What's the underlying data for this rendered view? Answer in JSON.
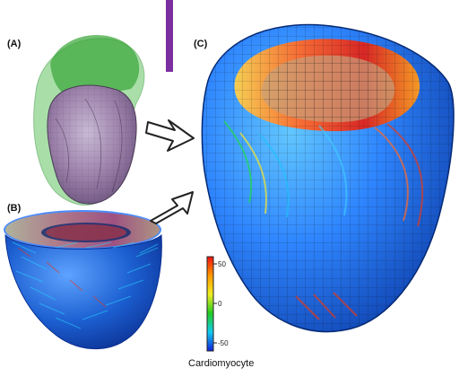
{
  "panels": {
    "a": {
      "label": "(A)"
    },
    "b": {
      "label": "(B)"
    },
    "c": {
      "label": "(C)"
    }
  },
  "colorbar": {
    "title": "Cardiomyocyte",
    "ticks": [
      "50",
      "0",
      "-50"
    ],
    "stops": [
      "#e11",
      "#f90",
      "#ee2",
      "#2c2",
      "#1ce",
      "#12d"
    ]
  },
  "colors": {
    "accent_bar": "#7b2fa0",
    "mesh_green": "#4fbf4f",
    "inner_purple": "#9a7fa8",
    "heart_blue": "#1560d8",
    "fiber_red": "#e23a1e",
    "fiber_yellow": "#e8e23a"
  }
}
